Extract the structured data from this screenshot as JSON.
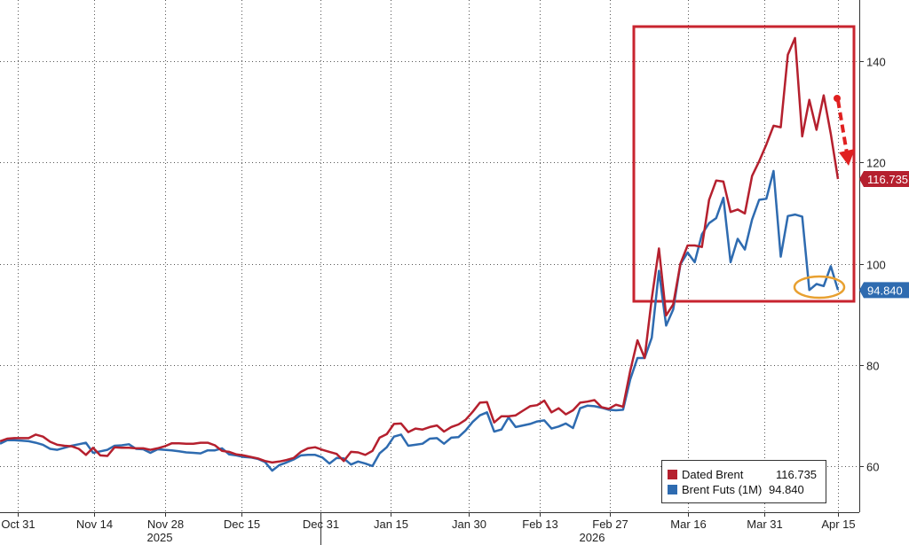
{
  "chart_data": {
    "type": "line",
    "x_tick_labels": [
      "Oct 31",
      "Nov 14",
      "Nov 28",
      "Dec 15",
      "Dec 31",
      "Jan 15",
      "Jan 30",
      "Feb 13",
      "Feb 27",
      "Mar 16",
      "Mar 31",
      "Apr 15"
    ],
    "year_labels": [
      "2025",
      "2026"
    ],
    "y_ticks": [
      60,
      80,
      100,
      120,
      140
    ],
    "ylim": [
      51,
      152
    ],
    "grid": true,
    "legend_position": "bottom-right",
    "series": [
      {
        "name": "Dated Brent",
        "color": "#b5202e",
        "last_value_label": "116.735",
        "values": [
          65.0,
          65.5,
          65.6,
          65.6,
          65.6,
          66.3,
          65.9,
          64.9,
          64.3,
          64.1,
          64.0,
          63.5,
          62.3,
          63.7,
          62.2,
          62.1,
          63.8,
          63.7,
          63.7,
          63.6,
          63.6,
          63.3,
          63.6,
          64.0,
          64.6,
          64.6,
          64.5,
          64.5,
          64.7,
          64.7,
          64.2,
          63.1,
          62.9,
          62.4,
          62.2,
          61.9,
          61.6,
          61.1,
          60.8,
          61.0,
          61.3,
          61.7,
          62.9,
          63.6,
          63.8,
          63.3,
          62.9,
          62.5,
          61.1,
          62.9,
          62.8,
          62.3,
          63.1,
          65.7,
          66.4,
          68.4,
          68.5,
          66.8,
          67.5,
          67.3,
          67.8,
          68.1,
          66.9,
          67.8,
          68.3,
          69.2,
          70.8,
          72.6,
          72.7,
          68.7,
          69.9,
          69.9,
          70.1,
          71.0,
          71.9,
          72.1,
          73.0,
          70.7,
          71.5,
          70.3,
          71.1,
          72.6,
          72.8,
          73.1,
          71.7,
          71.4,
          72.2,
          71.8,
          78.9,
          84.9,
          81.4,
          93.1,
          103.0,
          89.8,
          92.0,
          100.0,
          103.6,
          103.6,
          103.3,
          112.6,
          116.4,
          116.2,
          110.2,
          110.7,
          109.9,
          117.3,
          120.2,
          123.5,
          127.2,
          126.9,
          141.2,
          144.5,
          125.1,
          132.3,
          126.4,
          133.2,
          125.6,
          116.7
        ]
      },
      {
        "name": "Brent Futs (1M)",
        "color": "#2e6bb0",
        "last_value_label": "94.840",
        "values": [
          64.5,
          65.2,
          65.2,
          65.1,
          65.0,
          64.7,
          64.3,
          63.5,
          63.3,
          63.7,
          64.1,
          64.4,
          64.7,
          62.7,
          63.0,
          63.3,
          64.1,
          64.2,
          64.4,
          63.5,
          63.4,
          62.7,
          63.4,
          63.3,
          63.2,
          63.0,
          62.8,
          62.7,
          62.6,
          63.2,
          63.2,
          63.6,
          62.4,
          62.2,
          61.9,
          61.8,
          61.5,
          60.9,
          59.2,
          60.3,
          60.8,
          61.4,
          62.2,
          62.3,
          62.3,
          61.8,
          60.6,
          61.7,
          61.6,
          60.4,
          61.0,
          60.6,
          60.1,
          62.6,
          63.8,
          65.9,
          66.3,
          64.1,
          64.3,
          64.5,
          65.5,
          65.6,
          64.5,
          65.7,
          65.8,
          67.1,
          68.8,
          70.1,
          70.7,
          66.9,
          67.3,
          69.7,
          67.8,
          68.1,
          68.4,
          68.9,
          69.1,
          67.5,
          67.9,
          68.5,
          67.6,
          71.5,
          72.0,
          71.9,
          71.6,
          71.2,
          71.1,
          71.2,
          77.2,
          81.4,
          81.4,
          85.4,
          98.6,
          87.8,
          91.0,
          99.9,
          102.2,
          100.3,
          105.8,
          108.0,
          109.0,
          113.0,
          100.3,
          104.9,
          102.8,
          108.7,
          112.6,
          112.8,
          118.3,
          101.4,
          109.4,
          109.7,
          109.3,
          94.8,
          96.0,
          95.6,
          99.5,
          94.8
        ]
      }
    ]
  },
  "legend": {
    "items": [
      {
        "label": "Dated Brent",
        "value": "116.735",
        "color": "#b5202e"
      },
      {
        "label": "Brent Futs (1M)",
        "value": "94.840",
        "color": "#2e6bb0"
      }
    ]
  }
}
